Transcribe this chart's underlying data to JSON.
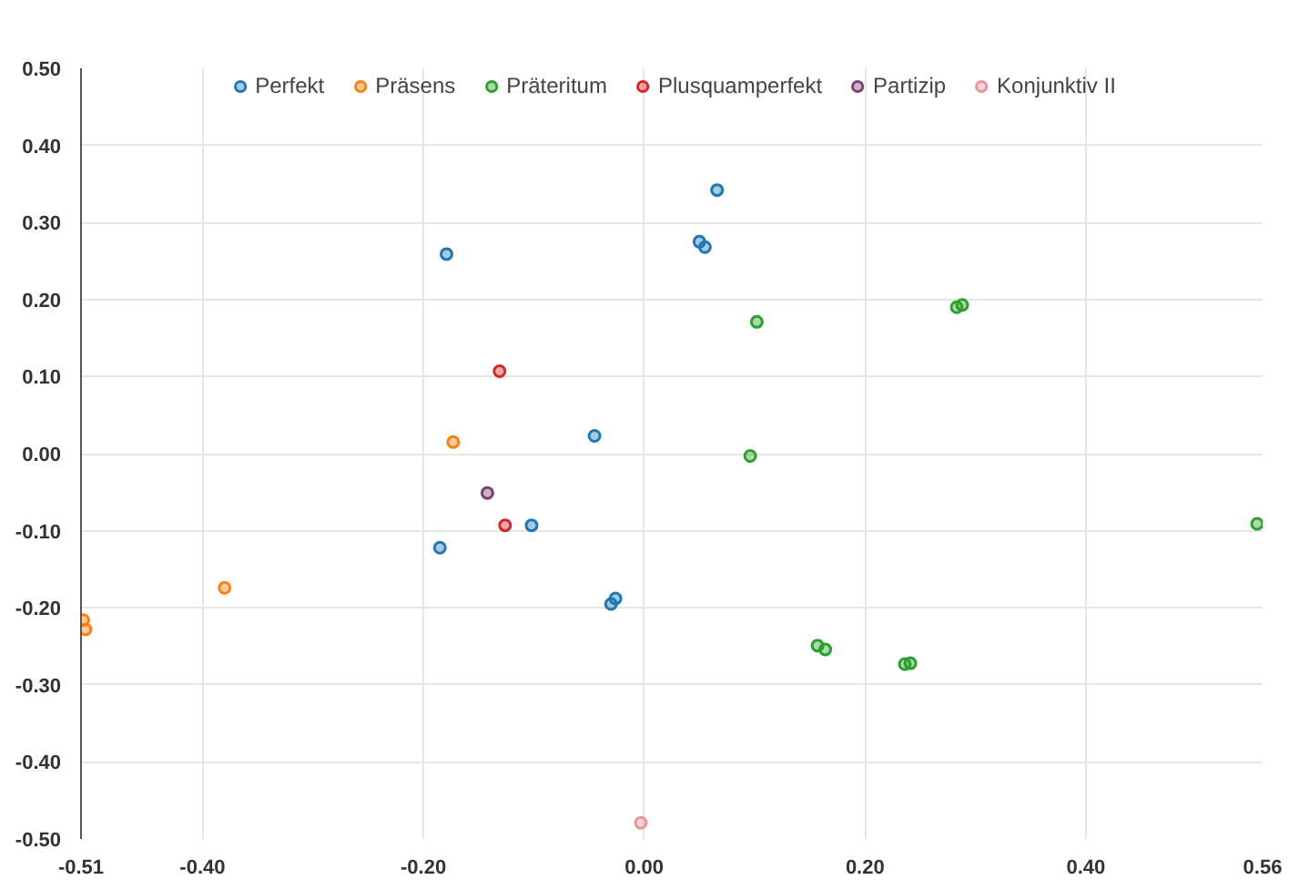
{
  "chart_data": {
    "type": "scatter",
    "xlim": [
      -0.51,
      0.56
    ],
    "ylim": [
      -0.5,
      0.5
    ],
    "xticks": [
      -0.51,
      {
        "value": -0.4,
        "label": "-0.40"
      },
      {
        "value": -0.2,
        "label": "-0.20"
      },
      {
        "value": 0,
        "label": "0.00"
      },
      {
        "value": 0.2,
        "label": "0.20"
      },
      {
        "value": 0.4,
        "label": "0.40"
      },
      0.56
    ],
    "yticks": [
      {
        "value": -0.5,
        "label": "-0.50"
      },
      {
        "value": -0.4,
        "label": "-0.40"
      },
      {
        "value": -0.3,
        "label": "-0.30"
      },
      {
        "value": -0.2,
        "label": "-0.20"
      },
      {
        "value": -0.1,
        "label": "-0.10"
      },
      {
        "value": 0,
        "label": "0.00"
      },
      {
        "value": 0.1,
        "label": "0.10"
      },
      {
        "value": 0.2,
        "label": "0.20"
      },
      {
        "value": 0.3,
        "label": "0.30"
      },
      {
        "value": 0.4,
        "label": "0.40"
      },
      {
        "value": 0.5,
        "label": "0.50"
      }
    ],
    "grid": true,
    "legend": "top",
    "marker": "circle",
    "series": [
      {
        "name": "Perfekt",
        "color": "#1f77b4",
        "x": [
          -0.179,
          0.066,
          0.05,
          0.055,
          -0.045,
          -0.185,
          -0.102,
          -0.026,
          -0.03
        ],
        "values": [
          0.259,
          0.342,
          0.275,
          0.268,
          0.023,
          -0.122,
          -0.093,
          -0.188,
          -0.195
        ]
      },
      {
        "name": "Präsens",
        "color": "#ff7f0e",
        "x": [
          -0.173,
          -0.38,
          -0.508,
          -0.506
        ],
        "values": [
          0.015,
          -0.174,
          -0.216,
          -0.228
        ]
      },
      {
        "name": "Präteritum",
        "color": "#2ca02c",
        "x": [
          0.102,
          0.283,
          0.288,
          0.096,
          0.555,
          0.157,
          0.164,
          0.236,
          0.241
        ],
        "values": [
          0.171,
          0.19,
          0.193,
          -0.003,
          -0.091,
          -0.249,
          -0.254,
          -0.273,
          -0.272
        ]
      },
      {
        "name": "Plusquamperfekt",
        "color": "#d62728",
        "x": [
          -0.131,
          -0.126
        ],
        "values": [
          0.107,
          -0.093
        ]
      },
      {
        "name": "Partizip",
        "color": "#7b4173",
        "x": [
          -0.142
        ],
        "values": [
          -0.051
        ]
      },
      {
        "name": "Konjunktiv II",
        "color": "#e8959b",
        "x": [
          -0.003
        ],
        "values": [
          -0.479
        ]
      }
    ]
  }
}
